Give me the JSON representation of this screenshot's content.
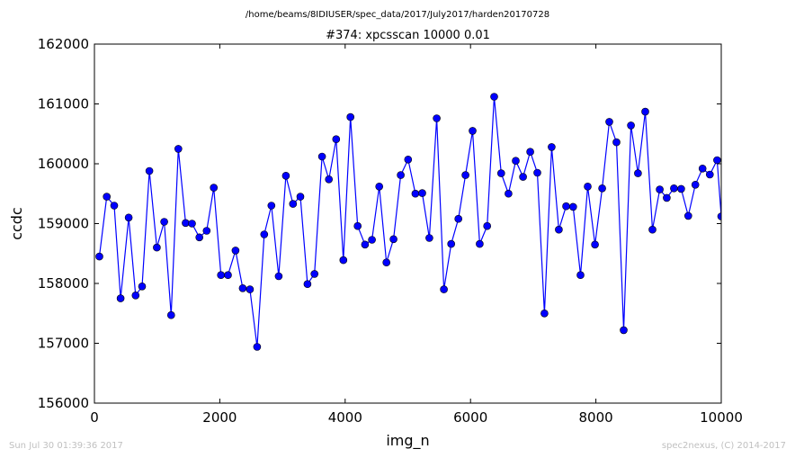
{
  "chart_data": {
    "type": "line",
    "suptitle": "/home/beams/8IDIUSER/spec_data/2017/July2017/harden20170728",
    "title": "#374: xpcsscan 10000 0.01",
    "xlabel": "img_n",
    "ylabel": "ccdc",
    "xlim": [
      0,
      10000
    ],
    "ylim": [
      156000,
      162000
    ],
    "xticks": [
      0,
      2000,
      4000,
      6000,
      8000,
      10000
    ],
    "yticks": [
      156000,
      157000,
      158000,
      159000,
      160000,
      161000,
      162000
    ],
    "xtick_labels": [
      "0",
      "2000",
      "4000",
      "6000",
      "8000",
      "10000"
    ],
    "ytick_labels": [
      "156000",
      "157000",
      "158000",
      "159000",
      "160000",
      "161000",
      "162000"
    ],
    "grid": false,
    "series": [
      {
        "color": "#0000ff",
        "marker": "circle",
        "x": [
          79,
          196,
          315,
          417,
          546,
          657,
          761,
          876,
          995,
          1114,
          1224,
          1339,
          1455,
          1557,
          1675,
          1791,
          1904,
          2018,
          2131,
          2251,
          2366,
          2480,
          2596,
          2709,
          2823,
          2940,
          3054,
          3168,
          3285,
          3399,
          3511,
          3631,
          3741,
          3857,
          3971,
          4084,
          4200,
          4317,
          4428,
          4544,
          4659,
          4772,
          4886,
          5004,
          5120,
          5229,
          5343,
          5460,
          5575,
          5691,
          5806,
          5920,
          6033,
          6146,
          6265,
          6377,
          6489,
          6606,
          6721,
          6838,
          6953,
          7066,
          7180,
          7294,
          7409,
          7525,
          7637,
          7754,
          7869,
          7985,
          8100,
          8214,
          8329,
          8444,
          8560,
          8672,
          8787,
          8902,
          9018,
          9131,
          9246,
          9360,
          9474,
          9587,
          9701,
          9818,
          9934,
          10000
        ],
        "y": [
          158450,
          159450,
          159300,
          157750,
          159100,
          157800,
          157950,
          159880,
          158600,
          159030,
          157470,
          160250,
          159010,
          159000,
          158770,
          158880,
          159600,
          158140,
          158140,
          158550,
          157920,
          157900,
          156940,
          158820,
          159300,
          158120,
          159800,
          159330,
          159450,
          157990,
          158160,
          160120,
          159740,
          160410,
          158390,
          160780,
          158960,
          158650,
          158730,
          159620,
          158350,
          158740,
          159810,
          160070,
          159500,
          159510,
          158760,
          160760,
          157900,
          158660,
          159080,
          159810,
          160550,
          158660,
          158960,
          161120,
          159840,
          159500,
          160050,
          159780,
          160200,
          159850,
          157500,
          160280,
          158900,
          159290,
          159280,
          158140,
          159620,
          158650,
          159590,
          160700,
          160360,
          157220,
          160640,
          159840,
          160870,
          158900,
          159570,
          159430,
          159590,
          159580,
          159130,
          159650,
          159920,
          159820,
          160060,
          159120
        ]
      }
    ]
  },
  "footer": {
    "timestamp": "Sun Jul 30 01:39:36 2017",
    "credit": "spec2nexus, (C) 2014-2017"
  }
}
